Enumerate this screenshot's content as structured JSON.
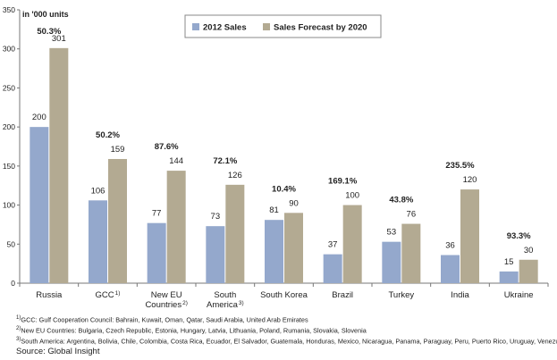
{
  "chart_data": {
    "type": "bar",
    "unit_label": "in '000 units",
    "categories": [
      {
        "label": "Russia",
        "sup": ""
      },
      {
        "label": "GCC",
        "sup": "1)"
      },
      {
        "label": "New EU Countries",
        "lines": [
          "New EU",
          "Countries"
        ],
        "sup": "2)"
      },
      {
        "label": "South America",
        "lines": [
          "South",
          "America"
        ],
        "sup": "3)"
      },
      {
        "label": "South Korea",
        "sup": ""
      },
      {
        "label": "Brazil",
        "sup": ""
      },
      {
        "label": "Turkey",
        "sup": ""
      },
      {
        "label": "India",
        "sup": ""
      },
      {
        "label": "Ukraine",
        "sup": ""
      }
    ],
    "series": [
      {
        "name": "2012 Sales",
        "color": "#94a8cc",
        "values": [
          200,
          106,
          77,
          73,
          81,
          37,
          53,
          36,
          15
        ]
      },
      {
        "name": "Sales Forecast by 2020",
        "color": "#b3aa92",
        "values": [
          301,
          159,
          144,
          126,
          90,
          100,
          76,
          120,
          30
        ]
      }
    ],
    "growth_labels": [
      "50.3%",
      "50.2%",
      "87.6%",
      "72.1%",
      "10.4%",
      "169.1%",
      "43.8%",
      "235.5%",
      "93.3%"
    ],
    "ylim": [
      0,
      350
    ],
    "yticks": [
      0,
      50,
      100,
      150,
      200,
      250,
      300,
      350
    ],
    "grid": false,
    "legend_position": "top-center",
    "title": "",
    "xlabel": "",
    "ylabel": ""
  },
  "footnotes": [
    {
      "sup": "1)",
      "text": "GCC: Gulf Cooperation Council: Bahrain, Kuwait, Oman, Qatar, Saudi Arabia, United Arab Emirates"
    },
    {
      "sup": "2)",
      "text": "New EU Countries: Bulgaria, Czech Republic, Estonia, Hungary, Latvia, Lithuania, Poland, Rumania, Slovakia, Slovenia"
    },
    {
      "sup": "3)",
      "text": "South America: Argentina, Bolivia, Chile, Colombia, Costa Rica, Ecuador, El Salvador, Guatemala, Honduras, Mexico, Nicaragua, Panama, Paraguay, Peru, Puerto Rico, Uruguay, Venezuela"
    }
  ],
  "source": "Source: Global Insight"
}
